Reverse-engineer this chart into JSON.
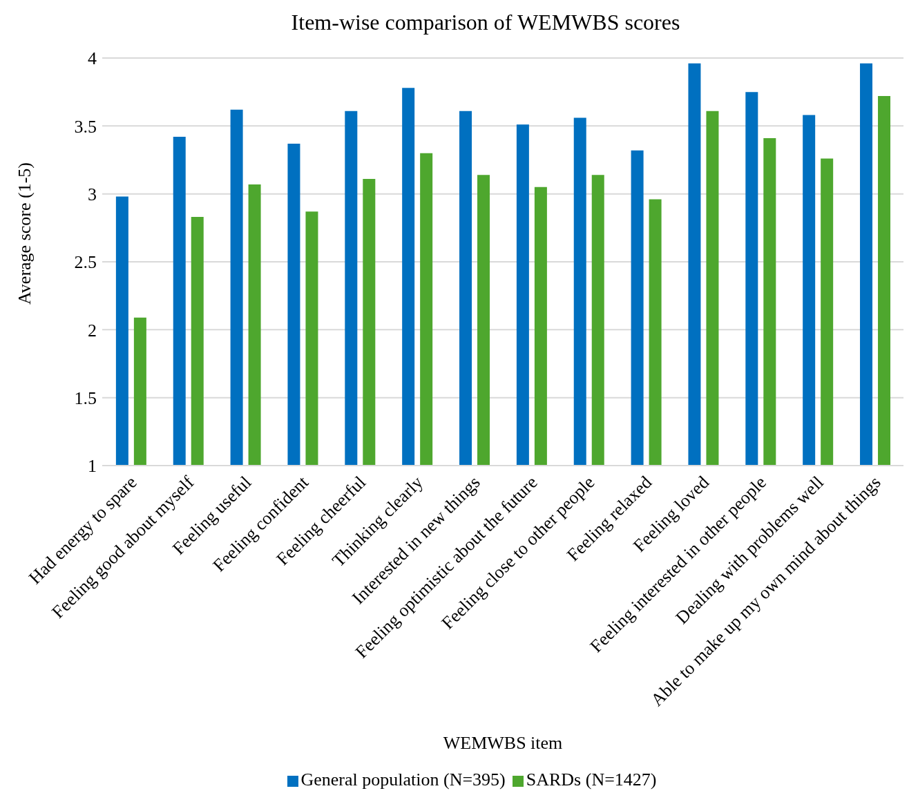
{
  "chart_data": {
    "type": "bar",
    "title": "Item-wise comparison of WEMWBS scores",
    "xlabel": "WEMWBS item",
    "ylabel": "Average score (1-5)",
    "categories": [
      "Had energy to spare",
      "Feeling good about myself",
      "Feeling useful",
      "Feeling confident",
      "Feeling cheerful",
      "Thinking clearly",
      "Interested in new things",
      "Feeling optimistic about the future",
      "Feeling close to other people",
      "Feeling relaxed",
      "Feeling loved",
      "Feeling interested in other people",
      "Dealing with problems well",
      "Able to make up my own mind about things"
    ],
    "series": [
      {
        "name": "General population (N=395)",
        "color": "#0070c0",
        "values": [
          2.98,
          3.42,
          3.62,
          3.37,
          3.61,
          3.78,
          3.61,
          3.51,
          3.56,
          3.32,
          3.96,
          3.75,
          3.58,
          3.96
        ]
      },
      {
        "name": "SARDs (N=1427)",
        "color": "#4ea72e",
        "values": [
          2.09,
          2.83,
          3.07,
          2.87,
          3.11,
          3.3,
          3.14,
          3.05,
          3.14,
          2.96,
          3.61,
          3.41,
          3.26,
          3.72
        ]
      }
    ],
    "ylim": [
      1,
      4
    ],
    "yticks": [
      1,
      1.5,
      2,
      2.5,
      3,
      3.5,
      4
    ],
    "grid": "y",
    "legend": "bottom"
  }
}
